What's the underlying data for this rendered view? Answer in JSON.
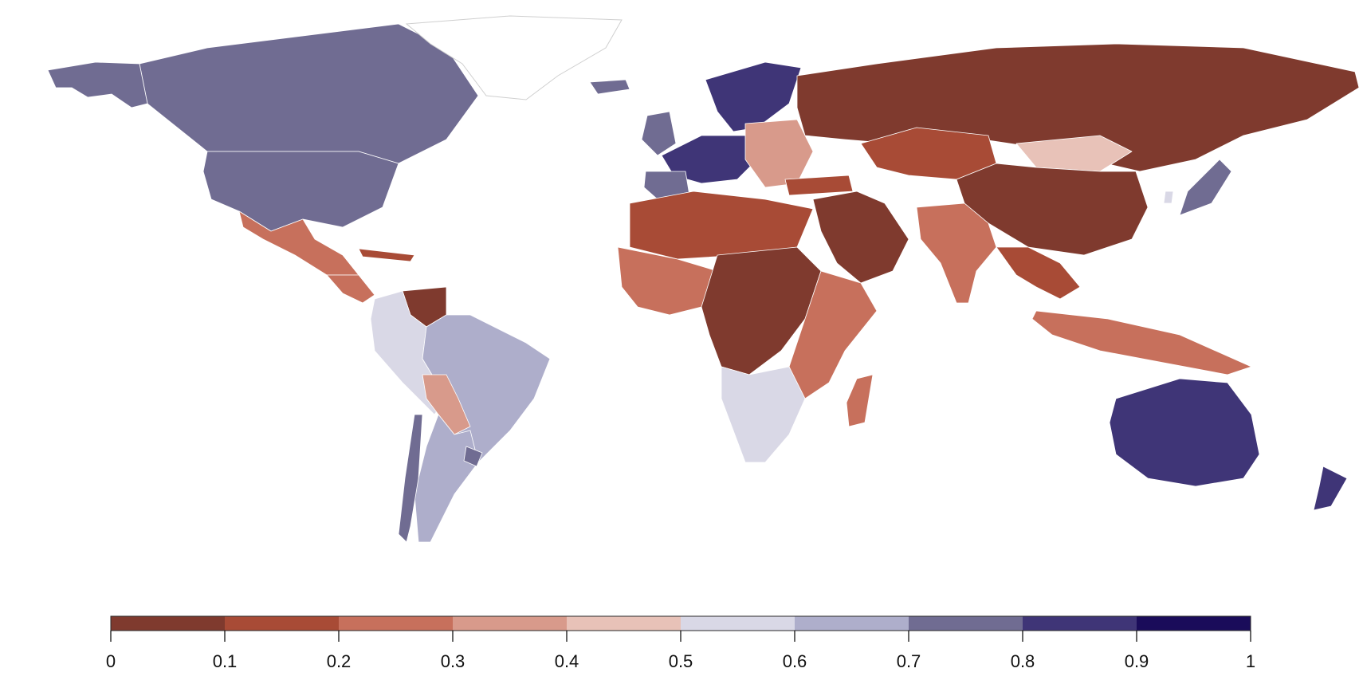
{
  "legend": {
    "bins": [
      {
        "from": 0.0,
        "to": 0.1,
        "color": "#7f3a2e"
      },
      {
        "from": 0.1,
        "to": 0.2,
        "color": "#a84b36"
      },
      {
        "from": 0.2,
        "to": 0.3,
        "color": "#c7705c"
      },
      {
        "from": 0.3,
        "to": 0.4,
        "color": "#d89a8b"
      },
      {
        "from": 0.4,
        "to": 0.5,
        "color": "#e8c2b8"
      },
      {
        "from": 0.5,
        "to": 0.6,
        "color": "#d9d8e6"
      },
      {
        "from": 0.6,
        "to": 0.7,
        "color": "#aeaecb"
      },
      {
        "from": 0.7,
        "to": 0.8,
        "color": "#706c92"
      },
      {
        "from": 0.8,
        "to": 0.9,
        "color": "#3f3577"
      },
      {
        "from": 0.9,
        "to": 1.0,
        "color": "#1a0c5a"
      }
    ],
    "tick_labels": [
      "0",
      "0.1",
      "0.2",
      "0.3",
      "0.4",
      "0.5",
      "0.6",
      "0.7",
      "0.8",
      "0.9",
      "1"
    ]
  },
  "map": {
    "projection": "world equirectangular-like",
    "regions": [
      {
        "name": "canada",
        "bin": 7
      },
      {
        "name": "usa",
        "bin": 7
      },
      {
        "name": "alaska",
        "bin": 7
      },
      {
        "name": "greenland",
        "bin": -1
      },
      {
        "name": "mexico",
        "bin": 2
      },
      {
        "name": "central-america",
        "bin": 2
      },
      {
        "name": "cuba",
        "bin": 1
      },
      {
        "name": "venezuela",
        "bin": 0
      },
      {
        "name": "colombia-ecuador-peru",
        "bin": 5
      },
      {
        "name": "brazil",
        "bin": 6
      },
      {
        "name": "bolivia-paraguay",
        "bin": 3
      },
      {
        "name": "argentina",
        "bin": 6
      },
      {
        "name": "chile",
        "bin": 7
      },
      {
        "name": "uruguay",
        "bin": 7
      },
      {
        "name": "iceland",
        "bin": 7
      },
      {
        "name": "scandinavia",
        "bin": 8
      },
      {
        "name": "western-europe",
        "bin": 8
      },
      {
        "name": "iberia",
        "bin": 7
      },
      {
        "name": "uk-ireland",
        "bin": 7
      },
      {
        "name": "eastern-europe",
        "bin": 3
      },
      {
        "name": "russia",
        "bin": 0
      },
      {
        "name": "kazakhstan",
        "bin": 1
      },
      {
        "name": "mongolia",
        "bin": 4
      },
      {
        "name": "china",
        "bin": 0
      },
      {
        "name": "middle-east",
        "bin": 0
      },
      {
        "name": "turkey",
        "bin": 1
      },
      {
        "name": "india",
        "bin": 2
      },
      {
        "name": "southeast-asia",
        "bin": 1
      },
      {
        "name": "indonesia-philippines",
        "bin": 2
      },
      {
        "name": "japan",
        "bin": 7
      },
      {
        "name": "south-korea",
        "bin": 5
      },
      {
        "name": "north-africa",
        "bin": 1
      },
      {
        "name": "west-africa",
        "bin": 2
      },
      {
        "name": "central-africa",
        "bin": 0
      },
      {
        "name": "east-africa",
        "bin": 2
      },
      {
        "name": "southern-africa",
        "bin": 5
      },
      {
        "name": "madagascar",
        "bin": 2
      },
      {
        "name": "australia",
        "bin": 8
      },
      {
        "name": "new-zealand",
        "bin": 8
      }
    ]
  }
}
